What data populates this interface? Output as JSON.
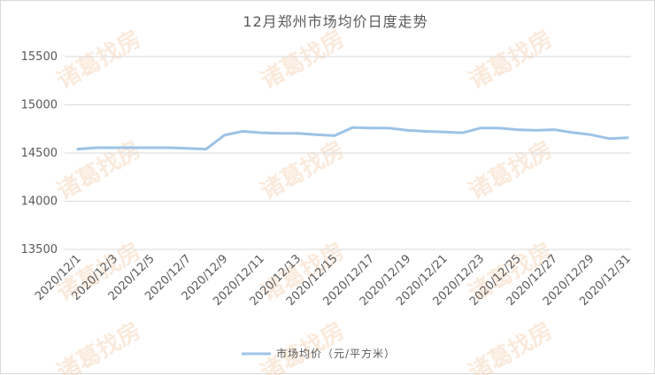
{
  "chart_data": {
    "type": "line",
    "title": "12月郑州市场均价日度走势",
    "xlabel": "",
    "ylabel": "",
    "ylim": [
      13500,
      15500
    ],
    "yticks": [
      13500,
      14000,
      14500,
      15000,
      15500
    ],
    "grid": "horizontal",
    "legend_position": "bottom",
    "x": [
      "2020/12/1",
      "2020/12/2",
      "2020/12/3",
      "2020/12/4",
      "2020/12/5",
      "2020/12/6",
      "2020/12/7",
      "2020/12/8",
      "2020/12/9",
      "2020/12/10",
      "2020/12/11",
      "2020/12/12",
      "2020/12/13",
      "2020/12/14",
      "2020/12/15",
      "2020/12/16",
      "2020/12/17",
      "2020/12/18",
      "2020/12/19",
      "2020/12/20",
      "2020/12/21",
      "2020/12/22",
      "2020/12/23",
      "2020/12/24",
      "2020/12/25",
      "2020/12/26",
      "2020/12/27",
      "2020/12/28",
      "2020/12/29",
      "2020/12/30",
      "2020/12/31"
    ],
    "x_tick_labels": [
      "2020/12/1",
      "2020/12/3",
      "2020/12/5",
      "2020/12/7",
      "2020/12/9",
      "2020/12/11",
      "2020/12/13",
      "2020/12/15",
      "2020/12/17",
      "2020/12/19",
      "2020/12/21",
      "2020/12/23",
      "2020/12/25",
      "2020/12/27",
      "2020/12/29",
      "2020/12/31"
    ],
    "series": [
      {
        "name": "市场均价（元/平方米）",
        "color": "#9dc3e6",
        "values": [
          14540,
          14555,
          14555,
          14555,
          14555,
          14555,
          14548,
          14540,
          14685,
          14725,
          14710,
          14705,
          14705,
          14690,
          14680,
          14765,
          14760,
          14758,
          14735,
          14725,
          14718,
          14710,
          14760,
          14758,
          14742,
          14735,
          14742,
          14712,
          14690,
          14650,
          14658
        ]
      }
    ]
  },
  "watermark": {
    "text": "诸葛找房",
    "color": "#f6d2b3"
  }
}
